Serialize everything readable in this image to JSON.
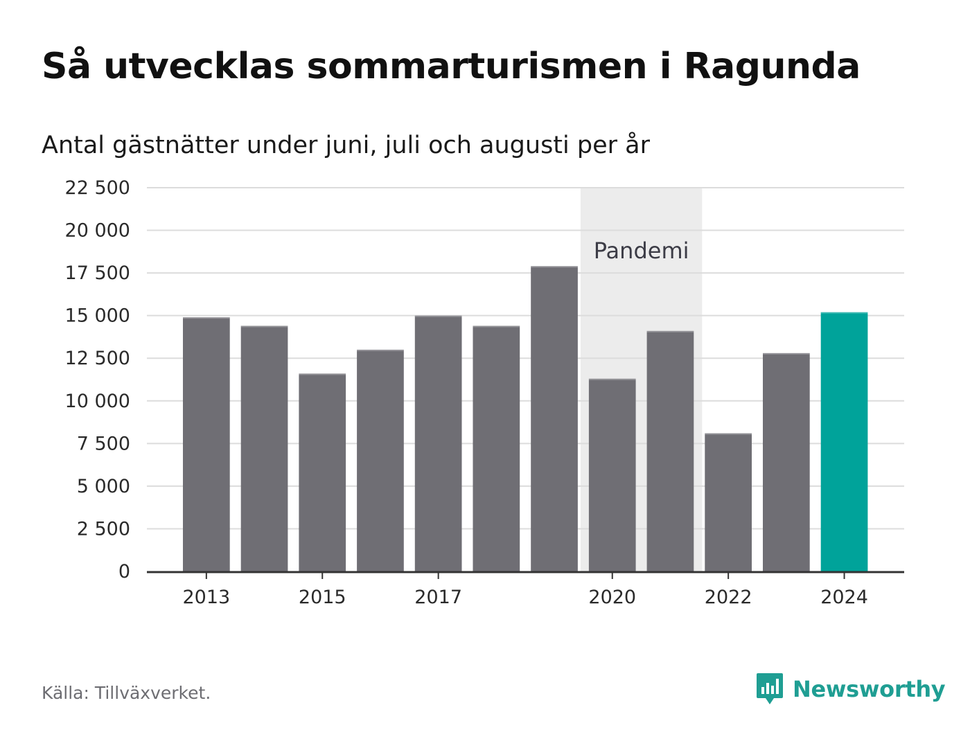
{
  "header": {
    "title": "Så utvecklas sommarturismen i Ragunda",
    "subtitle": "Antal gästnätter under juni, juli och augusti per år"
  },
  "footer": {
    "source": "Källa: Tillväxverket.",
    "brand": "Newsworthy"
  },
  "colors": {
    "bar": "#6f6e74",
    "highlight": "#00a39a",
    "band": "#ececec",
    "grid": "#dcdcdc",
    "axis": "#333333",
    "brand": "#1f9e93"
  },
  "icons": {
    "brand_logo": "bar-chart-speech-bubble-icon"
  },
  "chart_data": {
    "type": "bar",
    "x": [
      2013,
      2014,
      2015,
      2016,
      2017,
      2018,
      2019,
      2020,
      2021,
      2022,
      2023,
      2024
    ],
    "values": [
      14900,
      14400,
      11600,
      13000,
      15000,
      14400,
      17900,
      11300,
      14100,
      8100,
      12800,
      15200
    ],
    "highlight_x": 2024,
    "ylim": [
      0,
      22500
    ],
    "yticks": [
      0,
      2500,
      5000,
      7500,
      10000,
      12500,
      15000,
      17500,
      20000,
      22500
    ],
    "ytick_labels": [
      "0",
      "2 500",
      "5 000",
      "7 500",
      "10 000",
      "12 500",
      "15 000",
      "17 500",
      "20 000",
      "22 500"
    ],
    "xticks": [
      2013,
      2015,
      2017,
      2020,
      2022,
      2024
    ],
    "xtick_labels": [
      "2013",
      "2015",
      "2017",
      "2020",
      "2022",
      "2024"
    ],
    "grid": true,
    "annotation": {
      "text": "Pandemi",
      "x_start": 2020,
      "x_end": 2021
    }
  }
}
